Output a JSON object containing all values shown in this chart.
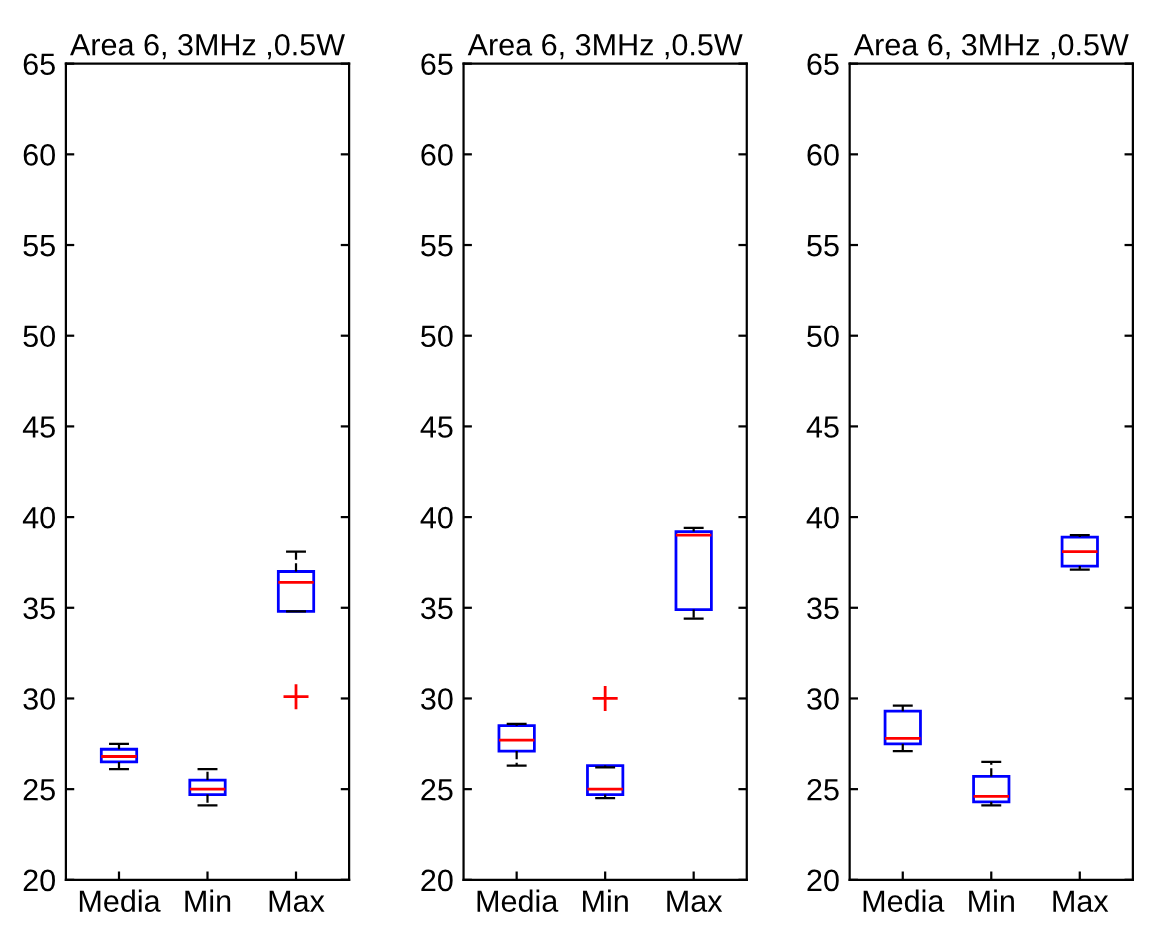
{
  "chart_data": [
    {
      "type": "box",
      "title": "Area 6, 3MHz ,0.5W",
      "categories": [
        "Media",
        "Min",
        "Max"
      ],
      "ylim": [
        20,
        65
      ],
      "yticks": [
        20,
        25,
        30,
        35,
        40,
        45,
        50,
        55,
        60,
        65
      ],
      "boxes": [
        {
          "low": 26.1,
          "q1": 26.5,
          "median": 26.8,
          "q3": 27.2,
          "high": 27.5
        },
        {
          "low": 24.1,
          "q1": 24.7,
          "median": 25.0,
          "q3": 25.5,
          "high": 26.1
        },
        {
          "low": 34.8,
          "q1": 34.8,
          "median": 36.4,
          "q3": 37.0,
          "high": 38.1,
          "outliers": [
            30.1
          ]
        }
      ]
    },
    {
      "type": "box",
      "title": "Area 6, 3MHz ,0.5W",
      "categories": [
        "Media",
        "Min",
        "Max"
      ],
      "ylim": [
        20,
        65
      ],
      "yticks": [
        20,
        25,
        30,
        35,
        40,
        45,
        50,
        55,
        60,
        65
      ],
      "boxes": [
        {
          "low": 26.3,
          "q1": 27.1,
          "median": 27.7,
          "q3": 28.5,
          "high": 28.6
        },
        {
          "low": 24.5,
          "q1": 24.7,
          "median": 25.0,
          "q3": 26.3,
          "high": 26.2,
          "outliers": [
            30.0
          ]
        },
        {
          "low": 34.4,
          "q1": 34.9,
          "median": 39.0,
          "q3": 39.2,
          "high": 39.4
        }
      ]
    },
    {
      "type": "box",
      "title": "Area 6, 3MHz ,0.5W",
      "categories": [
        "Media",
        "Min",
        "Max"
      ],
      "ylim": [
        20,
        65
      ],
      "yticks": [
        20,
        25,
        30,
        35,
        40,
        45,
        50,
        55,
        60,
        65
      ],
      "boxes": [
        {
          "low": 27.1,
          "q1": 27.5,
          "median": 27.8,
          "q3": 29.3,
          "high": 29.6
        },
        {
          "low": 24.1,
          "q1": 24.3,
          "median": 24.6,
          "q3": 25.7,
          "high": 26.5
        },
        {
          "low": 37.1,
          "q1": 37.3,
          "median": 38.1,
          "q3": 38.9,
          "high": 39.0
        }
      ]
    }
  ]
}
